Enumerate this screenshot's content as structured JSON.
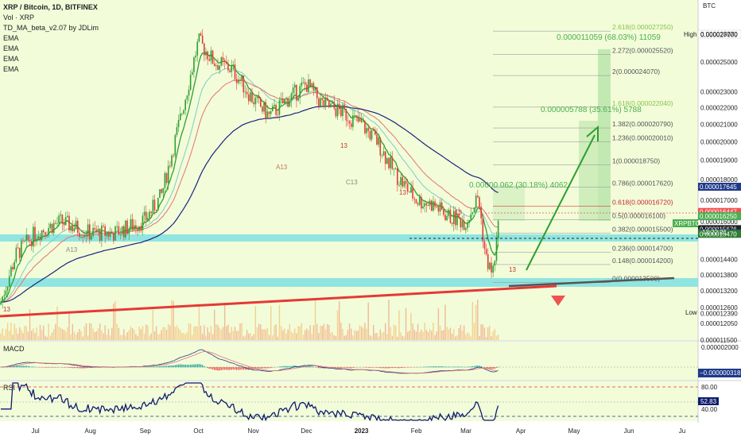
{
  "header": {
    "title": "XRP / Bitcoin, 1D, BITFINEX",
    "lines": [
      "Vol · XRP",
      "TD_MA_beta_v2.07 by JDLim",
      "EMA",
      "EMA",
      "EMA",
      "EMA"
    ]
  },
  "currency": "BTC",
  "labels": {
    "high": "High",
    "low": "Low",
    "macd": "MACD",
    "rsi": "RSI",
    "symbol": "XRPBTC",
    "countdown": "12:22:21"
  },
  "measure_big": "0.000011059 (68.03%) 11059",
  "measure_mid": "0.000005788 (35.61%) 5788",
  "measure_small": "0.00000 062 (30.18%) 4062",
  "td_labels": [
    "A13",
    "A13",
    "C13",
    "13",
    "13",
    "13",
    "13",
    "13"
  ],
  "fib_levels": [
    {
      "ratio": "2.618",
      "value": 2.725e-05
    },
    {
      "ratio": "2.272",
      "value": 2.552e-05
    },
    {
      "ratio": "2",
      "value": 2.407e-05
    },
    {
      "ratio": "1.618",
      "value": 2.204e-05
    },
    {
      "ratio": "1.382",
      "value": 2.079e-05
    },
    {
      "ratio": "1.236",
      "value": 2.001e-05
    },
    {
      "ratio": "1",
      "value": 1.875e-05
    },
    {
      "ratio": "0.786",
      "value": 1.762e-05
    },
    {
      "ratio": "0.618",
      "value": 1.672e-05
    },
    {
      "ratio": "0.5",
      "value": 1.61e-05
    },
    {
      "ratio": "0.382",
      "value": 1.55e-05
    },
    {
      "ratio": "0.236",
      "value": 1.47e-05
    },
    {
      "ratio": "0.148",
      "value": 1.42e-05
    },
    {
      "ratio": "0",
      "value": 1.35e-05
    }
  ],
  "price_axis": {
    "ticks": [
      "0.000027000",
      "0.000025000",
      "0.000023000",
      "0.000022000",
      "0.000021000",
      "0.000020000",
      "0.000019000",
      "0.000018000",
      "0.000017000",
      "0.000016000",
      "0.000015676",
      "0.000014400",
      "0.000013800",
      "0.000013200",
      "0.000012600",
      "0.000012390",
      "0.000012050",
      "0.000011500"
    ],
    "high_value": "0.000028770",
    "tags": [
      {
        "text": "0.000017645",
        "color": "#1e3a8a"
      },
      {
        "text": "0.000016447",
        "color": "#ef5350"
      },
      {
        "text": "0.000016250",
        "color": "#4caf50"
      },
      {
        "text": "0.000015676",
        "color": "#222222"
      },
      {
        "text": "0.000015503",
        "color": "#1e3a8a"
      },
      {
        "text": "0.000015470",
        "color": "#2e7d32"
      }
    ]
  },
  "macd_axis": {
    "tick": "0.000002000",
    "value_tag": "−0.000000318"
  },
  "rsi_axis": {
    "tick_high": "80.00",
    "tag": "52.83",
    "tick_low": "40.00"
  },
  "x_axis": {
    "months": [
      "Jul",
      "Aug",
      "Sep",
      "Oct",
      "Nov",
      "Dec",
      "2023",
      "Feb",
      "Mar",
      "Apr",
      "May",
      "Jun",
      "Ju"
    ]
  },
  "chart_data": {
    "type": "candlestick",
    "title": "XRP / Bitcoin, 1D, BITFINEX",
    "ylim": [
      1.15e-05,
      2.92e-05
    ],
    "yscale": "log",
    "last_price": 1.625e-05,
    "high": 2.877e-05,
    "low": 1.239e-05,
    "series_close_anchors": {
      "x": [
        "Jun 11",
        "Jun 20",
        "Jul 1",
        "Jul 15",
        "Aug 1",
        "Aug 15",
        "Sep 1",
        "Sep 10",
        "Sep 20",
        "Oct 1",
        "Oct 10",
        "Oct 20",
        "Nov 1",
        "Nov 10",
        "Nov 20",
        "Dec 1",
        "Dec 10",
        "Dec 20",
        "Jan 1",
        "Jan 10",
        "Jan 20",
        "Feb 1",
        "Feb 10",
        "Feb 20",
        "Mar 1",
        "Mar 8",
        "Mar 12",
        "Mar 16",
        "Mar 20"
      ],
      "close": [
        1.27e-05,
        1.46e-05,
        1.55e-05,
        1.6e-05,
        1.55e-05,
        1.55e-05,
        1.61e-05,
        1.72e-05,
        2.1e-05,
        2.65e-05,
        2.5e-05,
        2.45e-05,
        2.25e-05,
        2.15e-05,
        2.25e-05,
        2.35e-05,
        2.22e-05,
        2.18e-05,
        2.1e-05,
        2e-05,
        1.83e-05,
        1.7e-05,
        1.68e-05,
        1.62e-05,
        1.6e-05,
        1.72e-05,
        1.45e-05,
        1.38e-05,
        1.62e-05
      ]
    },
    "indicators": [
      "MACD",
      "RSI",
      "Volume"
    ],
    "grid": true
  }
}
